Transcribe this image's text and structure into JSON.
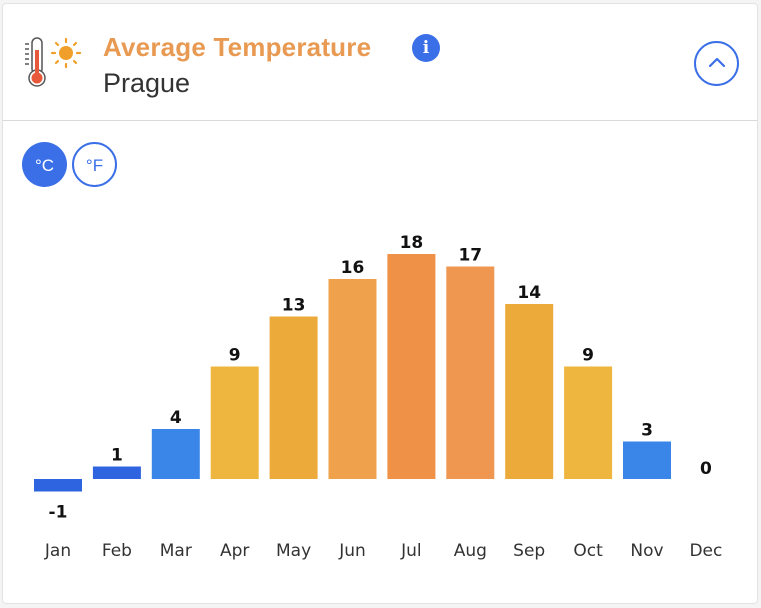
{
  "header": {
    "title": "Average Temperature",
    "subtitle": "Prague",
    "title_color": "#e89a52",
    "info_label": "i",
    "icons": {
      "title": "thermometer-sun-icon",
      "info": "info-icon",
      "collapse": "chevron-up-icon"
    }
  },
  "units": {
    "celsius": "°C",
    "fahrenheit": "°F",
    "selected": "celsius"
  },
  "colors": {
    "accent": "#3a6fe8",
    "cold": "#2f64e0",
    "cool": "#3a86e8",
    "mild": "#efb63f",
    "warm": "#eba43a",
    "hot": "#ef9147"
  },
  "chart_data": {
    "type": "bar",
    "title": "Average Temperature",
    "categories": [
      "Jan",
      "Feb",
      "Mar",
      "Apr",
      "May",
      "Jun",
      "Jul",
      "Aug",
      "Sep",
      "Oct",
      "Nov",
      "Dec"
    ],
    "values": [
      -1,
      1,
      4,
      9,
      13,
      16,
      18,
      17,
      14,
      9,
      3,
      0
    ],
    "value_labels": [
      "-1",
      "1",
      "4",
      "9",
      "13",
      "16",
      "18",
      "17",
      "14",
      "9",
      "3",
      "0"
    ],
    "bar_colors": [
      "#2f64e0",
      "#2f64e0",
      "#3a86e8",
      "#efb63f",
      "#ecaa3a",
      "#efa24b",
      "#ef9147",
      "#ef9650",
      "#ecaa3a",
      "#efb63f",
      "#3a86e8",
      "#3a86e8"
    ],
    "unit": "°C",
    "xlabel": "",
    "ylabel": "",
    "ylim": [
      -1,
      18
    ],
    "grid": false,
    "legend": "none"
  }
}
